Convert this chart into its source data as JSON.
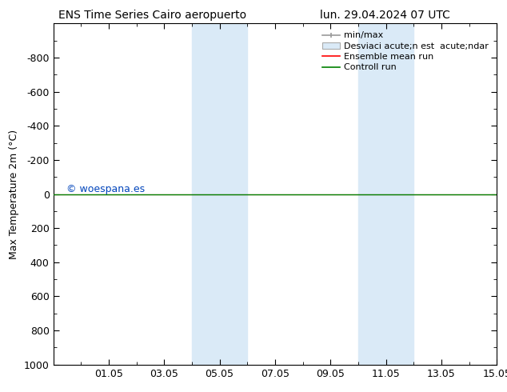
{
  "title_left": "ENS Time Series Cairo aeropuerto",
  "title_right": "lun. 29.04.2024 07 UTC",
  "ylabel": "Max Temperature 2m (°C)",
  "watermark": "© woespana.es",
  "xtick_labels": [
    "01.05",
    "03.05",
    "05.05",
    "07.05",
    "09.05",
    "11.05",
    "13.05",
    "15.05"
  ],
  "xtick_values": [
    2,
    4,
    6,
    8,
    10,
    12,
    14,
    16
  ],
  "xlim": [
    0,
    16
  ],
  "ylim": [
    -1000,
    1000
  ],
  "yticks": [
    -800,
    -600,
    -400,
    -200,
    0,
    200,
    400,
    600,
    800,
    1000
  ],
  "control_run_y": 0,
  "ensemble_mean_y": 0,
  "shaded_regions": [
    {
      "xmin": 5,
      "xmax": 7,
      "color": "#daeaf7"
    },
    {
      "xmin": 11,
      "xmax": 13,
      "color": "#daeaf7"
    }
  ],
  "legend_labels": [
    "min/max",
    "Desviaci acute;n est  acute;ndar",
    "Ensemble mean run",
    "Controll run"
  ],
  "legend_colors": [
    "#aaaaaa",
    "#daeaf7",
    "red",
    "green"
  ],
  "background_color": "#ffffff",
  "plot_bg_color": "#ffffff",
  "font_family": "DejaVu Sans",
  "title_fontsize": 10,
  "axis_fontsize": 9,
  "tick_fontsize": 9,
  "legend_fontsize": 8
}
